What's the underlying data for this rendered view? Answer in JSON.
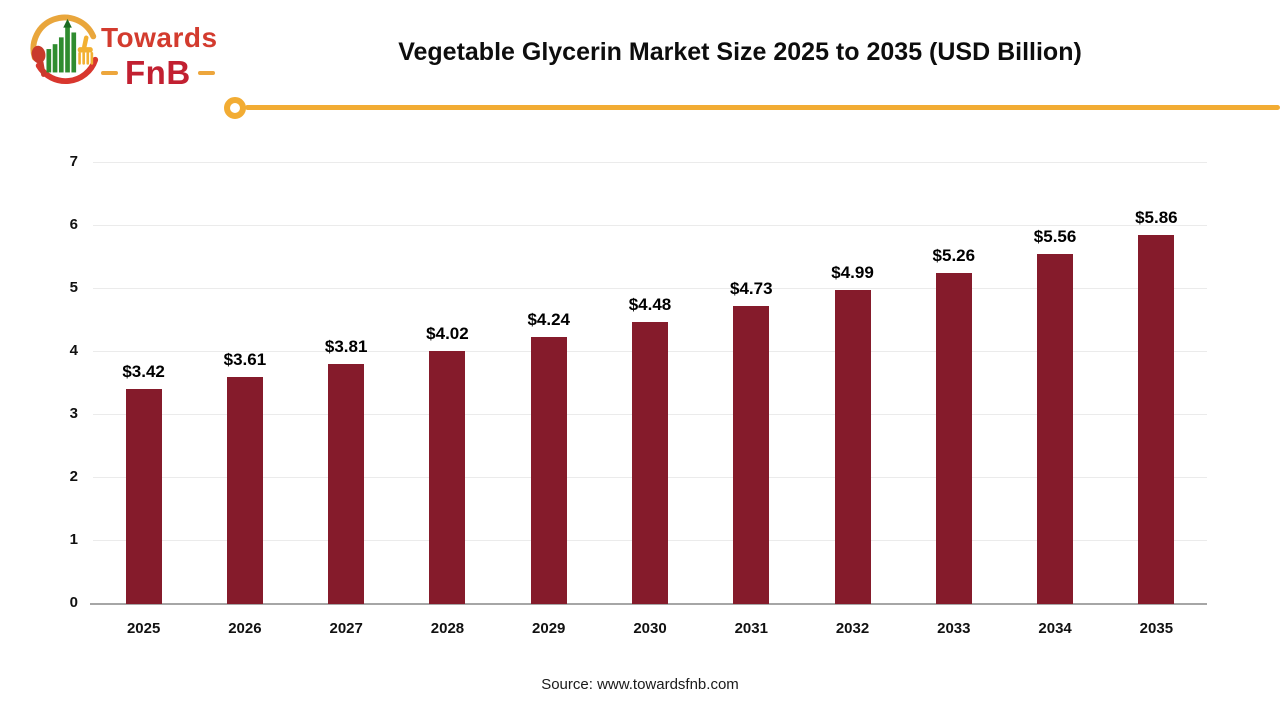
{
  "header": {
    "logo": {
      "brand_top": "Towards",
      "brand_bottom": "FnB"
    },
    "title": "Vegetable Glycerin Market Size 2025 to 2035 (USD Billion)"
  },
  "chart_data": {
    "type": "bar",
    "title": "Vegetable Glycerin Market Size 2025 to 2035 (USD Billion)",
    "categories": [
      "2025",
      "2026",
      "2027",
      "2028",
      "2029",
      "2030",
      "2031",
      "2032",
      "2033",
      "2034",
      "2035"
    ],
    "values": [
      3.42,
      3.61,
      3.81,
      4.02,
      4.24,
      4.48,
      4.73,
      4.99,
      5.26,
      5.56,
      5.86
    ],
    "value_labels": [
      "$3.42",
      "$3.61",
      "$3.81",
      "$4.02",
      "$4.24",
      "$4.48",
      "$4.73",
      "$4.99",
      "$5.26",
      "$5.56",
      "$5.86"
    ],
    "unit": "USD Billion",
    "xlabel": "",
    "ylabel": "",
    "ylim": [
      0,
      7
    ],
    "ytick_step": 1,
    "grid": true,
    "legend": "none",
    "bar_color": "#851B2B"
  },
  "footer": {
    "source": "Source: www.towardsfnb.com"
  },
  "colors": {
    "bar": "#851B2B",
    "accent_gold": "#F2AC33",
    "brand_red": "#D33B2E",
    "brand_crimson": "#C22031",
    "gridline": "#EBEBEB",
    "axis_line": "#A6A6A6"
  }
}
